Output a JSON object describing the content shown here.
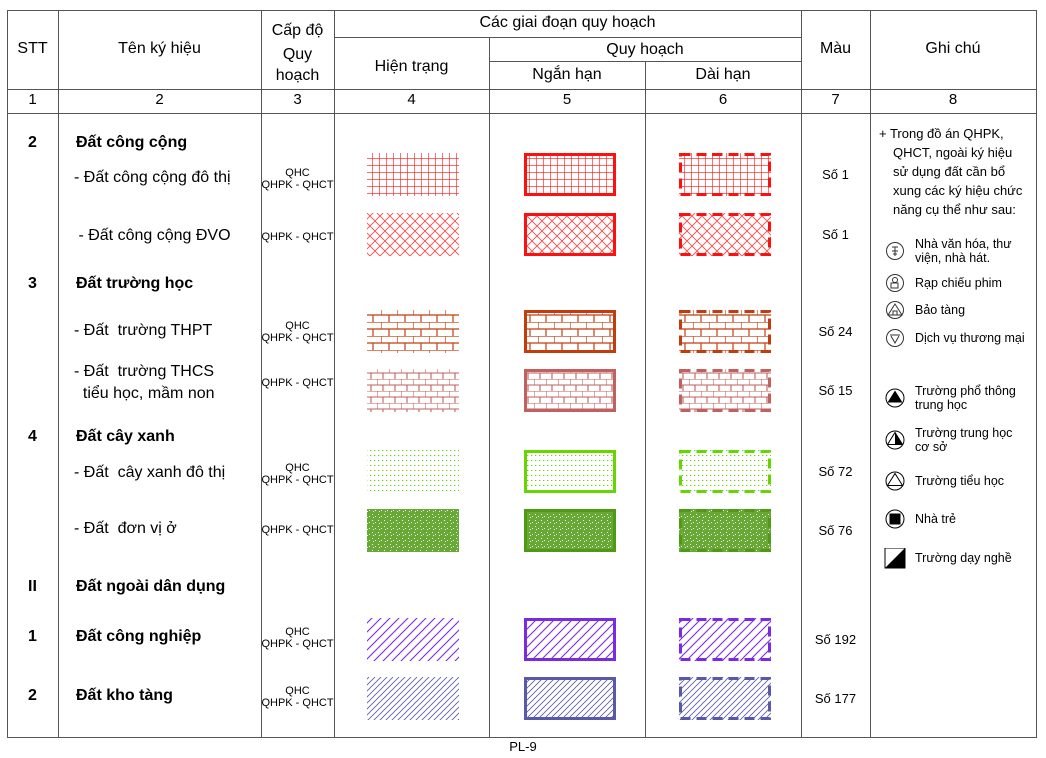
{
  "header": {
    "stt": "STT",
    "ten_ky_hieu": "Tên ký hiệu",
    "cap_do": [
      "Cấp độ",
      "Quy",
      "hoạch"
    ],
    "cac_giai_doan": "Các giai đoạn quy hoạch",
    "hien_trang": "Hiện trạng",
    "quy_hoach": "Quy hoạch",
    "ngan_han": "Ngắn hạn",
    "dai_han": "Dài hạn",
    "mau": "Màu",
    "ghi_chu": "Ghi chú",
    "column_numbers": [
      "1",
      "2",
      "3",
      "4",
      "5",
      "6",
      "7",
      "8"
    ]
  },
  "rows": [
    {
      "stt": "2",
      "name": [
        "Đất công cộng"
      ],
      "bold": true
    },
    {
      "stt": "",
      "name": [
        "- Đất công cộng đô thị"
      ],
      "level": [
        "QHC",
        "QHPK - QHCT"
      ],
      "pattern": "grid",
      "color": "#ff1010",
      "mau": "Số 1"
    },
    {
      "stt": "",
      "name": [
        " - Đất công cộng ĐVO"
      ],
      "level": [
        "QHPK - QHCT"
      ],
      "pattern": "diamond",
      "color": "#ff1010",
      "mau": "Số 1"
    },
    {
      "stt": "3",
      "name": [
        "Đất trường học"
      ],
      "bold": true
    },
    {
      "stt": "",
      "name": [
        "- Đất  trường THPT"
      ],
      "level": [
        "QHC",
        "QHPK - QHCT"
      ],
      "pattern": "brick",
      "color": "#c43c0c",
      "mau": "Số 24"
    },
    {
      "stt": "",
      "name": [
        "- Đất  trường THCS",
        "  tiểu học, mầm non"
      ],
      "level": [
        "QHPK - QHCT"
      ],
      "pattern": "brick-small",
      "color": "#c0605f",
      "mau": "Số 15"
    },
    {
      "stt": "4",
      "name": [
        "Đất cây xanh"
      ],
      "bold": true
    },
    {
      "stt": "",
      "name": [
        "- Đất  cây xanh đô thị"
      ],
      "level": [
        "QHC",
        "QHPK - QHCT"
      ],
      "pattern": "dots",
      "color": "#66d600",
      "mau": "Số 72"
    },
    {
      "stt": "",
      "name": [
        "- Đất  đơn vị ở"
      ],
      "level": [
        "QHPK - QHCT"
      ],
      "pattern": "stipple",
      "color": "#4e9a12",
      "mau": "Số 76"
    },
    {
      "stt": "II",
      "name": [
        "Đất ngoài dân dụng"
      ],
      "bold": true
    },
    {
      "stt": "1",
      "name": [
        "Đất công nghiệp"
      ],
      "bold": true,
      "level": [
        "QHC",
        "QHPK - QHCT"
      ],
      "pattern": "diagonal",
      "color": "#7a2ae0",
      "mau": "Số 192"
    },
    {
      "stt": "2",
      "name": [
        "Đất kho tàng"
      ],
      "bold": true,
      "level": [
        "QHC",
        "QHPK - QHCT"
      ],
      "pattern": "diagonal-fine",
      "color": "#5a58a8",
      "mau": "Số 177"
    }
  ],
  "notes": {
    "intro": [
      "+ Trong đồ án QHPK,",
      "QHCT, ngoài ký hiệu",
      "sử dụng đất cần bổ",
      "xung các ký hiệu chức",
      "năng cụ thể như sau:"
    ],
    "legend": [
      {
        "icon": "culture-house-icon",
        "label": [
          "Nhà văn hóa, thư",
          "viện, nhà hát."
        ]
      },
      {
        "icon": "cinema-icon",
        "label": [
          "Rạp chiếu phim"
        ]
      },
      {
        "icon": "museum-icon",
        "label": [
          "Bảo tàng"
        ]
      },
      {
        "icon": "commerce-icon",
        "label": [
          "Dịch vụ thương mại"
        ]
      },
      {
        "icon": "high-school-icon",
        "label": [
          "Trường phổ thông",
          "trung học"
        ]
      },
      {
        "icon": "secondary-school-icon",
        "label": [
          "Trường trung học",
          "cơ sở"
        ]
      },
      {
        "icon": "primary-school-icon",
        "label": [
          "Trường tiểu học"
        ]
      },
      {
        "icon": "kindergarten-icon",
        "label": [
          "Nhà trẻ"
        ]
      },
      {
        "icon": "vocational-school-icon",
        "label": [
          "Trường dạy nghề"
        ]
      }
    ]
  },
  "footer": {
    "page": "PL-9"
  }
}
